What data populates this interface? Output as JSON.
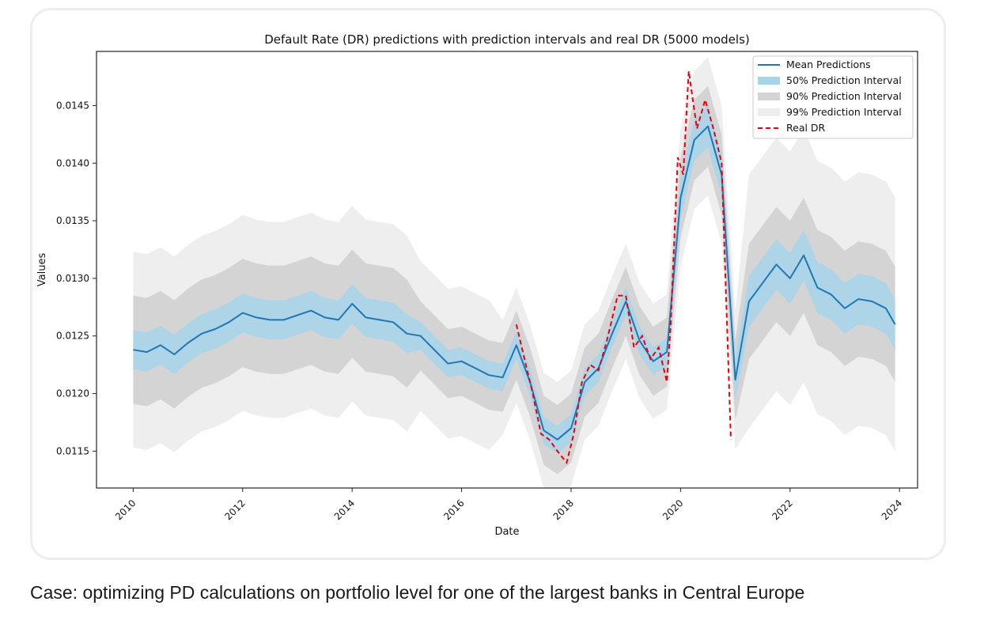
{
  "caption": "Case: optimizing PD calculations on portfolio level for one of the largest banks in Central Europe",
  "colors": {
    "mean": "#1f77b4",
    "pi50": "#a6d4ea",
    "pi90": "#d4d4d4",
    "pi99": "#eeeeee",
    "real": "#e8000b"
  },
  "chart_data": {
    "type": "line",
    "title": "Default Rate (DR) predictions with prediction intervals and real DR (5000 models)",
    "xlabel": "Date",
    "ylabel": "Values",
    "xlim": [
      2009.33,
      2024.33
    ],
    "ylim": [
      0.01118,
      0.01497
    ],
    "x_ticks": [
      2010,
      2012,
      2014,
      2016,
      2018,
      2020,
      2022,
      2024
    ],
    "x_tick_labels": [
      "2010",
      "2012",
      "2014",
      "2016",
      "2018",
      "2020",
      "2022",
      "2024"
    ],
    "y_ticks": [
      0.0115,
      0.012,
      0.0125,
      0.013,
      0.0135,
      0.014,
      0.0145
    ],
    "y_tick_labels": [
      "0.0115",
      "0.0120",
      "0.0125",
      "0.0130",
      "0.0135",
      "0.0140",
      "0.0145"
    ],
    "legend_position": "top-right",
    "legend": [
      {
        "label": "Mean Predictions",
        "kind": "line",
        "key": "mean"
      },
      {
        "label": "50% Prediction Interval",
        "kind": "patch",
        "key": "pi50"
      },
      {
        "label": "90% Prediction Interval",
        "kind": "patch",
        "key": "pi90"
      },
      {
        "label": "99% Prediction Interval",
        "kind": "patch",
        "key": "pi99"
      },
      {
        "label": "Real DR",
        "kind": "dash",
        "key": "real"
      }
    ],
    "mean": {
      "x": [
        2010,
        2010.25,
        2010.5,
        2010.75,
        2011,
        2011.25,
        2011.5,
        2011.75,
        2012,
        2012.25,
        2012.5,
        2012.75,
        2013,
        2013.25,
        2013.5,
        2013.75,
        2014,
        2014.25,
        2014.5,
        2014.75,
        2015,
        2015.25,
        2015.5,
        2015.75,
        2016,
        2016.25,
        2016.5,
        2016.75,
        2017,
        2017.25,
        2017.5,
        2017.75,
        2018,
        2018.25,
        2018.5,
        2018.75,
        2019,
        2019.25,
        2019.5,
        2019.75,
        2020,
        2020.25,
        2020.5,
        2020.75,
        2021,
        2021.25,
        2021.5,
        2021.75,
        2022,
        2022.25,
        2022.5,
        2022.75,
        2023,
        2023.25,
        2023.5,
        2023.75,
        2023.92
      ],
      "y": [
        0.01238,
        0.01236,
        0.01242,
        0.01234,
        0.01244,
        0.01252,
        0.01256,
        0.01262,
        0.0127,
        0.01266,
        0.01264,
        0.01264,
        0.01268,
        0.01272,
        0.01266,
        0.01264,
        0.01278,
        0.01266,
        0.01264,
        0.01262,
        0.01252,
        0.0125,
        0.01238,
        0.01226,
        0.01228,
        0.01222,
        0.01216,
        0.01214,
        0.01242,
        0.0121,
        0.01168,
        0.0116,
        0.0117,
        0.0121,
        0.01222,
        0.01252,
        0.0128,
        0.01246,
        0.01228,
        0.01236,
        0.0137,
        0.0142,
        0.01432,
        0.0139,
        0.01212,
        0.0128,
        0.01296,
        0.01312,
        0.013,
        0.0132,
        0.01292,
        0.01286,
        0.01274,
        0.01282,
        0.0128,
        0.01274,
        0.0126
      ]
    },
    "pi50_halfwidth": [
      0.00017,
      0.00017,
      0.00017,
      0.00017,
      0.00017,
      0.00017,
      0.00017,
      0.00017,
      0.00017,
      0.00017,
      0.00017,
      0.00017,
      0.00017,
      0.00017,
      0.00017,
      0.00017,
      0.00017,
      0.00017,
      0.00017,
      0.00017,
      0.00017,
      0.00012,
      0.00012,
      0.00012,
      0.00012,
      0.00012,
      0.00012,
      0.00012,
      0.00012,
      0.00012,
      0.00012,
      0.00012,
      0.00012,
      0.00012,
      0.00012,
      0.00012,
      0.00012,
      0.00012,
      0.00012,
      0.00012,
      0.00018,
      0.00018,
      0.00018,
      0.00018,
      0.00018,
      0.00022,
      0.00022,
      0.00022,
      0.00022,
      0.00022,
      0.00022,
      0.00022,
      0.00022,
      0.00022,
      0.00022,
      0.00022,
      0.00022
    ],
    "pi90_halfwidth": [
      0.00047,
      0.00047,
      0.00047,
      0.00047,
      0.00047,
      0.00047,
      0.00047,
      0.00047,
      0.00047,
      0.00047,
      0.00047,
      0.00047,
      0.00047,
      0.00047,
      0.00047,
      0.00047,
      0.00047,
      0.00047,
      0.00047,
      0.00047,
      0.00047,
      0.0003,
      0.0003,
      0.0003,
      0.0003,
      0.0003,
      0.0003,
      0.0003,
      0.0003,
      0.0003,
      0.0003,
      0.0003,
      0.0003,
      0.0003,
      0.0003,
      0.0003,
      0.0003,
      0.0003,
      0.0003,
      0.0003,
      0.00035,
      0.00035,
      0.00035,
      0.00035,
      0.00035,
      0.0005,
      0.0005,
      0.0005,
      0.0005,
      0.0005,
      0.0005,
      0.0005,
      0.0005,
      0.0005,
      0.0005,
      0.0005,
      0.0005
    ],
    "pi99_halfwidth": [
      0.00085,
      0.00085,
      0.00085,
      0.00085,
      0.00085,
      0.00085,
      0.00085,
      0.00085,
      0.00085,
      0.00085,
      0.00085,
      0.00085,
      0.00085,
      0.00085,
      0.00085,
      0.00085,
      0.00085,
      0.00085,
      0.00085,
      0.00085,
      0.00085,
      0.00065,
      0.00065,
      0.00065,
      0.00065,
      0.00065,
      0.00065,
      0.0005,
      0.0005,
      0.0005,
      0.0005,
      0.0005,
      0.0005,
      0.0005,
      0.0005,
      0.0005,
      0.0005,
      0.0005,
      0.0005,
      0.0005,
      0.0006,
      0.0006,
      0.0006,
      0.0006,
      0.0006,
      0.0011,
      0.0011,
      0.0011,
      0.0011,
      0.0011,
      0.0011,
      0.0011,
      0.0011,
      0.0011,
      0.0011,
      0.0011,
      0.0011
    ],
    "real": {
      "x": [
        2017,
        2017.15,
        2017.3,
        2017.45,
        2017.6,
        2017.75,
        2017.92,
        2018.05,
        2018.2,
        2018.35,
        2018.5,
        2018.65,
        2018.85,
        2019,
        2019.15,
        2019.3,
        2019.45,
        2019.6,
        2019.75,
        2019.82,
        2019.95,
        2020.05,
        2020.15,
        2020.3,
        2020.45,
        2020.6,
        2020.75,
        2020.92
      ],
      "y": [
        0.0126,
        0.0123,
        0.012,
        0.01165,
        0.0116,
        0.0115,
        0.0114,
        0.01165,
        0.0121,
        0.01225,
        0.0122,
        0.01245,
        0.01285,
        0.01285,
        0.0124,
        0.0125,
        0.0123,
        0.0124,
        0.0121,
        0.0126,
        0.01405,
        0.0139,
        0.0148,
        0.0143,
        0.01455,
        0.0143,
        0.014,
        0.0116
      ]
    }
  }
}
